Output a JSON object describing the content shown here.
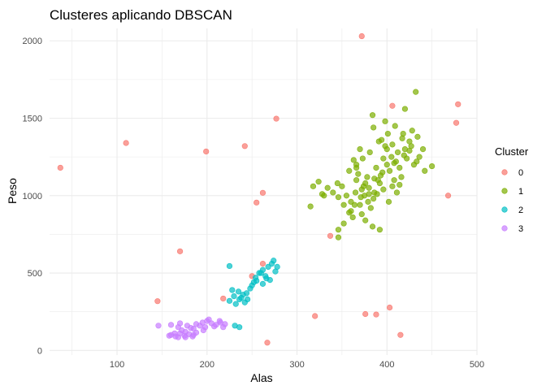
{
  "chart_data": {
    "type": "scatter",
    "title": "Clusteres aplicando DBSCAN",
    "xlabel": "Alas",
    "ylabel": "Peso",
    "xlim": [
      25,
      500
    ],
    "ylim": [
      -30,
      2080
    ],
    "x_ticks": [
      100,
      200,
      300,
      400,
      500
    ],
    "y_ticks": [
      0,
      500,
      1000,
      1500,
      2000
    ],
    "x_tick_labels": [
      "100",
      "200",
      "300",
      "400",
      "500"
    ],
    "y_tick_labels": [
      "0",
      "500",
      "1000",
      "1500",
      "2000"
    ],
    "grid": true,
    "legend": {
      "title": "Cluster",
      "position": "right"
    },
    "colors": {
      "0": "#F8766D",
      "1": "#7CAE00",
      "2": "#00BFC4",
      "3": "#C77CFF"
    },
    "series": [
      {
        "name": "0",
        "points": [
          [
            37,
            1180
          ],
          [
            110,
            1340
          ],
          [
            199,
            1285
          ],
          [
            242,
            1320
          ],
          [
            277,
            1497
          ],
          [
            372,
            2030
          ],
          [
            479,
            1590
          ],
          [
            477,
            1470
          ],
          [
            468,
            1000
          ],
          [
            406,
            1580
          ],
          [
            255,
            955
          ],
          [
            262,
            1018
          ],
          [
            170,
            640
          ],
          [
            145,
            318
          ],
          [
            218,
            335
          ],
          [
            250,
            480
          ],
          [
            262,
            560
          ],
          [
            337,
            740
          ],
          [
            320,
            222
          ],
          [
            376,
            235
          ],
          [
            388,
            232
          ],
          [
            403,
            277
          ],
          [
            415,
            100
          ],
          [
            267,
            50
          ]
        ]
      },
      {
        "name": "1",
        "points": [
          [
            375,
            1000
          ],
          [
            380,
            1050
          ],
          [
            385,
            980
          ],
          [
            390,
            1100
          ],
          [
            370,
            940
          ],
          [
            365,
            1020
          ],
          [
            395,
            1150
          ],
          [
            400,
            1200
          ],
          [
            405,
            1250
          ],
          [
            410,
            1220
          ],
          [
            420,
            1300
          ],
          [
            392,
            1080
          ],
          [
            382,
            920
          ],
          [
            372,
            880
          ],
          [
            362,
            860
          ],
          [
            378,
            1120
          ],
          [
            388,
            1180
          ],
          [
            398,
            1320
          ],
          [
            412,
            1280
          ],
          [
            425,
            1350
          ],
          [
            360,
            960
          ],
          [
            355,
            1000
          ],
          [
            350,
            1060
          ],
          [
            345,
            1080
          ],
          [
            368,
            1140
          ],
          [
            376,
            840
          ],
          [
            384,
            800
          ],
          [
            392,
            780
          ],
          [
            402,
            960
          ],
          [
            408,
            1100
          ],
          [
            414,
            1180
          ],
          [
            418,
            1400
          ],
          [
            428,
            1420
          ],
          [
            434,
            1380
          ],
          [
            440,
            1300
          ],
          [
            450,
            1190
          ],
          [
            432,
            1670
          ],
          [
            420,
            1560
          ],
          [
            398,
            1480
          ],
          [
            385,
            1440
          ],
          [
            370,
            1300
          ],
          [
            363,
            1230
          ],
          [
            358,
            1160
          ],
          [
            374,
            1060
          ],
          [
            386,
            1020
          ],
          [
            396,
            1040
          ],
          [
            406,
            1060
          ],
          [
            416,
            1120
          ],
          [
            422,
            1240
          ],
          [
            430,
            1200
          ],
          [
            366,
            1100
          ],
          [
            371,
            990
          ],
          [
            379,
            960
          ],
          [
            389,
            1010
          ],
          [
            393,
            1130
          ],
          [
            403,
            1160
          ],
          [
            411,
            1020
          ],
          [
            419,
            1260
          ],
          [
            427,
            1320
          ],
          [
            436,
            1250
          ],
          [
            346,
            780
          ],
          [
            352,
            820
          ],
          [
            360,
            900
          ],
          [
            366,
            1180
          ],
          [
            373,
            1240
          ],
          [
            381,
            1280
          ],
          [
            391,
            1350
          ],
          [
            401,
            1400
          ],
          [
            409,
            1450
          ],
          [
            417,
            1370
          ],
          [
            425,
            1290
          ],
          [
            433,
            1220
          ],
          [
            442,
            1160
          ],
          [
            315,
            930
          ],
          [
            318,
            1060
          ],
          [
            324,
            1090
          ],
          [
            330,
            1000
          ],
          [
            346,
            730
          ],
          [
            366,
            1200
          ],
          [
            376,
            1080
          ],
          [
            386,
            1110
          ],
          [
            396,
            1240
          ],
          [
            406,
            1330
          ],
          [
            384,
            1520
          ],
          [
            394,
            1360
          ],
          [
            400,
            1300
          ],
          [
            408,
            1210
          ],
          [
            414,
            1070
          ],
          [
            380,
            1010
          ],
          [
            372,
            1040
          ],
          [
            364,
            940
          ],
          [
            358,
            890
          ],
          [
            352,
            940
          ],
          [
            346,
            990
          ],
          [
            340,
            1020
          ],
          [
            334,
            1050
          ],
          [
            328,
            1010
          ]
        ]
      },
      {
        "name": "2",
        "points": [
          [
            225,
            320
          ],
          [
            230,
            350
          ],
          [
            235,
            380
          ],
          [
            240,
            360
          ],
          [
            245,
            330
          ],
          [
            250,
            420
          ],
          [
            255,
            450
          ],
          [
            258,
            500
          ],
          [
            262,
            520
          ],
          [
            265,
            480
          ],
          [
            268,
            540
          ],
          [
            272,
            560
          ],
          [
            276,
            510
          ],
          [
            262,
            430
          ],
          [
            254,
            470
          ],
          [
            248,
            400
          ],
          [
            238,
            340
          ],
          [
            232,
            300
          ],
          [
            228,
            390
          ],
          [
            242,
            310
          ],
          [
            225,
            545
          ],
          [
            231,
            160
          ],
          [
            236,
            150
          ],
          [
            270,
            455
          ],
          [
            274,
            580
          ],
          [
            278,
            540
          ],
          [
            266,
            465
          ],
          [
            260,
            500
          ],
          [
            252,
            440
          ],
          [
            244,
            370
          ],
          [
            236,
            330
          ]
        ]
      },
      {
        "name": "3",
        "points": [
          [
            160,
            100
          ],
          [
            165,
            90
          ],
          [
            170,
            110
          ],
          [
            175,
            95
          ],
          [
            180,
            105
          ],
          [
            185,
            100
          ],
          [
            168,
            150
          ],
          [
            172,
            130
          ],
          [
            178,
            160
          ],
          [
            188,
            170
          ],
          [
            195,
            180
          ],
          [
            200,
            190
          ],
          [
            205,
            175
          ],
          [
            210,
            165
          ],
          [
            215,
            180
          ],
          [
            220,
            170
          ],
          [
            198,
            150
          ],
          [
            192,
            160
          ],
          [
            185,
            140
          ],
          [
            176,
            120
          ],
          [
            164,
            110
          ],
          [
            158,
            95
          ],
          [
            170,
            175
          ],
          [
            182,
            145
          ],
          [
            202,
            200
          ],
          [
            208,
            155
          ],
          [
            214,
            190
          ],
          [
            218,
            150
          ],
          [
            196,
            130
          ],
          [
            188,
            115
          ],
          [
            146,
            160
          ],
          [
            160,
            165
          ],
          [
            168,
            85
          ],
          [
            176,
            85
          ],
          [
            184,
            90
          ]
        ]
      }
    ]
  }
}
